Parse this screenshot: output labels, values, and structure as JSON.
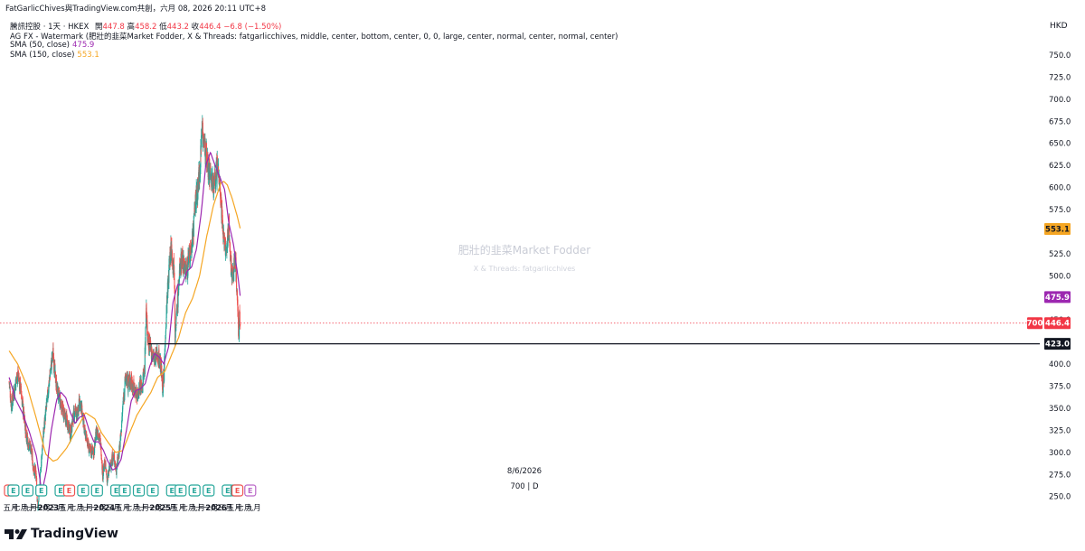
{
  "header": {
    "title_line": "FatGarlicChives與TradingView.com共創，六月 08, 2026 20:11 UTC+8",
    "symbol": "騰訊控股 · 1天 · HKEX",
    "open_label": "開",
    "open": "447.8",
    "high_label": "高",
    "high": "458.2",
    "low_label": "低",
    "low": "443.2",
    "close_label": "收",
    "close": "446.4",
    "change": "−6.8 (−1.50%)",
    "watermark_indicator": "AG FX - Watermark (肥壯的韭菜Market Fodder, X & Threads: fatgarlicchives, middle, center, bottom, center, 0, 0, large, center, normal, center, normal, center)",
    "sma50_label": "SMA (50, close)",
    "sma50_value": "475.9",
    "sma150_label": "SMA (150, close)",
    "sma150_value": "553.1",
    "currency": "HKD"
  },
  "watermark": {
    "title": "肥壯的韭菜Market Fodder",
    "subtitle": "X & Threads: fatgarlicchives"
  },
  "badges": {
    "sma150": "553.1",
    "sma50": "475.9",
    "volume": "700",
    "price": "446.4",
    "support": "423.0"
  },
  "cursor": {
    "date": "8/6/2026",
    "volume_text": "700 | D"
  },
  "footer": {
    "brand": "TradingView"
  },
  "colors": {
    "up": "#26a69a",
    "down": "#ef5350",
    "sma50": "#9c27b0",
    "sma150": "#f5a623",
    "support_line": "#131722",
    "price_line": "#f23645",
    "earnings": "#26a69a",
    "dividend": "#ef5350"
  },
  "chart_data": {
    "type": "candlestick",
    "y_ticks": [
      "750.0",
      "725.0",
      "700.0",
      "675.0",
      "650.0",
      "625.0",
      "600.0",
      "575.0",
      "550.0",
      "525.0",
      "500.0",
      "475.0",
      "450.0",
      "425.0",
      "400.0",
      "375.0",
      "350.0",
      "325.0",
      "300.0",
      "275.0",
      "250.0"
    ],
    "ylim": [
      250,
      750
    ],
    "x_ticks": [
      "五月",
      "七月",
      "九月",
      "十一月",
      "2023",
      "三月",
      "五月",
      "七月",
      "九月",
      "十一月",
      "2024",
      "三月",
      "五月",
      "七月",
      "九月",
      "十一月",
      "2025",
      "三月",
      "五月",
      "七月",
      "九月",
      "十一月",
      "2026",
      "三月",
      "五月",
      "七月",
      "九月"
    ],
    "x_tick_dates": [
      "2022-05-01",
      "2022-07-01",
      "2022-09-01",
      "2022-11-01",
      "2023-01-01",
      "2023-03-01",
      "2023-05-01",
      "2023-07-01",
      "2023-09-01",
      "2023-11-01",
      "2024-01-01",
      "2024-03-01",
      "2024-05-01",
      "2024-07-01",
      "2024-09-01",
      "2024-11-01",
      "2025-01-01",
      "2025-03-01",
      "2025-05-01",
      "2025-07-01",
      "2025-09-01",
      "2025-11-01",
      "2026-01-01",
      "2026-03-01",
      "2026-05-01",
      "2026-07-01",
      "2026-09-01"
    ],
    "price_anchors": [
      [
        "2022-04-20",
        380
      ],
      [
        "2022-05-05",
        352
      ],
      [
        "2022-05-20",
        368
      ],
      [
        "2022-06-15",
        390
      ],
      [
        "2022-07-05",
        372
      ],
      [
        "2022-07-25",
        340
      ],
      [
        "2022-08-10",
        320
      ],
      [
        "2022-08-25",
        310
      ],
      [
        "2022-09-10",
        305
      ],
      [
        "2022-09-25",
        282
      ],
      [
        "2022-10-10",
        278
      ],
      [
        "2022-10-24",
        238
      ],
      [
        "2022-11-05",
        262
      ],
      [
        "2022-11-20",
        300
      ],
      [
        "2022-12-05",
        330
      ],
      [
        "2022-12-20",
        352
      ],
      [
        "2023-01-05",
        378
      ],
      [
        "2023-01-20",
        400
      ],
      [
        "2023-02-01",
        412
      ],
      [
        "2023-02-15",
        385
      ],
      [
        "2023-03-01",
        370
      ],
      [
        "2023-03-15",
        360
      ],
      [
        "2023-04-01",
        350
      ],
      [
        "2023-04-20",
        340
      ],
      [
        "2023-05-10",
        332
      ],
      [
        "2023-05-25",
        320
      ],
      [
        "2023-06-10",
        338
      ],
      [
        "2023-06-25",
        348
      ],
      [
        "2023-07-10",
        340
      ],
      [
        "2023-07-25",
        360
      ],
      [
        "2023-08-10",
        345
      ],
      [
        "2023-08-25",
        322
      ],
      [
        "2023-09-10",
        316
      ],
      [
        "2023-09-25",
        302
      ],
      [
        "2023-10-10",
        302
      ],
      [
        "2023-10-25",
        300
      ],
      [
        "2023-11-10",
        323
      ],
      [
        "2023-11-25",
        322
      ],
      [
        "2023-12-10",
        308
      ],
      [
        "2023-12-22",
        275
      ],
      [
        "2024-01-05",
        288
      ],
      [
        "2024-01-22",
        268
      ],
      [
        "2024-02-05",
        282
      ],
      [
        "2024-02-20",
        292
      ],
      [
        "2024-03-05",
        294
      ],
      [
        "2024-03-20",
        280
      ],
      [
        "2024-04-05",
        300
      ],
      [
        "2024-04-20",
        322
      ],
      [
        "2024-05-05",
        360
      ],
      [
        "2024-05-20",
        385
      ],
      [
        "2024-06-05",
        378
      ],
      [
        "2024-06-20",
        382
      ],
      [
        "2024-07-05",
        376
      ],
      [
        "2024-07-20",
        370
      ],
      [
        "2024-08-05",
        365
      ],
      [
        "2024-08-20",
        378
      ],
      [
        "2024-09-05",
        375
      ],
      [
        "2024-09-20",
        395
      ],
      [
        "2024-10-02",
        465
      ],
      [
        "2024-10-10",
        430
      ],
      [
        "2024-10-25",
        418
      ],
      [
        "2024-11-10",
        412
      ],
      [
        "2024-11-25",
        405
      ],
      [
        "2024-12-10",
        410
      ],
      [
        "2024-12-25",
        406
      ],
      [
        "2025-01-08",
        395
      ],
      [
        "2025-01-15",
        374
      ],
      [
        "2025-01-25",
        385
      ],
      [
        "2025-02-05",
        440
      ],
      [
        "2025-02-15",
        476
      ],
      [
        "2025-02-25",
        500
      ],
      [
        "2025-03-05",
        520
      ],
      [
        "2025-03-12",
        535
      ],
      [
        "2025-03-25",
        515
      ],
      [
        "2025-04-03",
        510
      ],
      [
        "2025-04-08",
        432
      ],
      [
        "2025-04-20",
        460
      ],
      [
        "2025-05-05",
        500
      ],
      [
        "2025-05-20",
        520
      ],
      [
        "2025-06-05",
        515
      ],
      [
        "2025-06-20",
        505
      ],
      [
        "2025-07-05",
        518
      ],
      [
        "2025-07-20",
        525
      ],
      [
        "2025-08-05",
        550
      ],
      [
        "2025-08-20",
        585
      ],
      [
        "2025-09-05",
        600
      ],
      [
        "2025-09-20",
        630
      ],
      [
        "2025-10-02",
        675
      ],
      [
        "2025-10-15",
        640
      ],
      [
        "2025-10-25",
        650
      ],
      [
        "2025-11-10",
        625
      ],
      [
        "2025-11-25",
        615
      ],
      [
        "2025-12-10",
        603
      ],
      [
        "2025-12-25",
        608
      ],
      [
        "2026-01-10",
        625
      ],
      [
        "2026-01-20",
        612
      ],
      [
        "2026-02-01",
        590
      ],
      [
        "2026-02-10",
        562
      ],
      [
        "2026-02-25",
        535
      ],
      [
        "2026-03-10",
        525
      ],
      [
        "2026-03-25",
        560
      ],
      [
        "2026-04-05",
        515
      ],
      [
        "2026-04-20",
        500
      ],
      [
        "2026-05-05",
        520
      ],
      [
        "2026-05-15",
        490
      ],
      [
        "2026-05-22",
        470
      ],
      [
        "2026-05-28",
        430
      ],
      [
        "2026-06-03",
        458
      ],
      [
        "2026-06-08",
        446.4
      ]
    ],
    "sma50_anchors": [
      [
        "2022-04-20",
        385
      ],
      [
        "2022-06-01",
        360
      ],
      [
        "2022-07-15",
        345
      ],
      [
        "2022-09-01",
        322
      ],
      [
        "2022-10-15",
        296
      ],
      [
        "2022-11-20",
        254
      ],
      [
        "2022-12-20",
        280
      ],
      [
        "2023-01-20",
        325
      ],
      [
        "2023-02-25",
        360
      ],
      [
        "2023-03-25",
        368
      ],
      [
        "2023-04-25",
        362
      ],
      [
        "2023-05-25",
        345
      ],
      [
        "2023-06-25",
        333
      ],
      [
        "2023-07-25",
        340
      ],
      [
        "2023-08-25",
        342
      ],
      [
        "2023-09-25",
        325
      ],
      [
        "2023-10-25",
        312
      ],
      [
        "2023-11-25",
        312
      ],
      [
        "2023-12-25",
        303
      ],
      [
        "2024-01-25",
        290
      ],
      [
        "2024-02-25",
        280
      ],
      [
        "2024-03-25",
        283
      ],
      [
        "2024-04-20",
        292
      ],
      [
        "2024-05-25",
        325
      ],
      [
        "2024-06-25",
        358
      ],
      [
        "2024-07-25",
        370
      ],
      [
        "2024-08-25",
        372
      ],
      [
        "2024-09-25",
        378
      ],
      [
        "2024-10-25",
        398
      ],
      [
        "2024-11-25",
        412
      ],
      [
        "2024-12-25",
        408
      ],
      [
        "2025-01-25",
        400
      ],
      [
        "2025-02-25",
        420
      ],
      [
        "2025-03-25",
        470
      ],
      [
        "2025-04-25",
        490
      ],
      [
        "2025-05-25",
        490
      ],
      [
        "2025-06-25",
        505
      ],
      [
        "2025-07-25",
        510
      ],
      [
        "2025-08-25",
        530
      ],
      [
        "2025-09-25",
        570
      ],
      [
        "2025-10-25",
        625
      ],
      [
        "2025-11-25",
        640
      ],
      [
        "2025-12-25",
        625
      ],
      [
        "2026-01-25",
        612
      ],
      [
        "2026-02-25",
        598
      ],
      [
        "2026-03-25",
        560
      ],
      [
        "2026-04-25",
        535
      ],
      [
        "2026-05-25",
        497
      ],
      [
        "2026-06-08",
        475.9
      ]
    ],
    "sma150_anchors": [
      [
        "2022-04-20",
        415
      ],
      [
        "2022-06-15",
        400
      ],
      [
        "2022-08-15",
        375
      ],
      [
        "2022-10-15",
        338
      ],
      [
        "2022-12-15",
        298
      ],
      [
        "2023-02-01",
        290
      ],
      [
        "2023-03-01",
        292
      ],
      [
        "2023-05-01",
        305
      ],
      [
        "2023-07-01",
        325
      ],
      [
        "2023-09-01",
        345
      ],
      [
        "2023-11-01",
        338
      ],
      [
        "2023-12-15",
        322
      ],
      [
        "2024-02-01",
        310
      ],
      [
        "2024-03-15",
        300
      ],
      [
        "2024-05-01",
        302
      ],
      [
        "2024-06-15",
        322
      ],
      [
        "2024-08-01",
        342
      ],
      [
        "2024-09-15",
        355
      ],
      [
        "2024-11-01",
        368
      ],
      [
        "2024-12-15",
        385
      ],
      [
        "2025-02-01",
        392
      ],
      [
        "2025-03-15",
        410
      ],
      [
        "2025-05-01",
        430
      ],
      [
        "2025-06-15",
        458
      ],
      [
        "2025-08-01",
        475
      ],
      [
        "2025-09-15",
        500
      ],
      [
        "2025-11-01",
        545
      ],
      [
        "2025-12-15",
        580
      ],
      [
        "2026-02-01",
        605
      ],
      [
        "2026-02-20",
        607
      ],
      [
        "2026-03-15",
        603
      ],
      [
        "2026-04-15",
        588
      ],
      [
        "2026-05-15",
        570
      ],
      [
        "2026-06-08",
        553.1
      ]
    ],
    "support_level": 423.0,
    "support_start": "2024-10-15",
    "last_price": 446.4,
    "event_markers": [
      {
        "date": "2022-04-25",
        "type": "dividend",
        "text": "E"
      },
      {
        "date": "2022-05-18",
        "type": "earnings",
        "text": "E"
      },
      {
        "date": "2022-08-18",
        "type": "earnings",
        "text": "E"
      },
      {
        "date": "2022-11-16",
        "type": "earnings",
        "text": "E"
      },
      {
        "date": "2023-03-22",
        "type": "earnings",
        "text": "E"
      },
      {
        "date": "2023-05-17",
        "type": "dividend",
        "text": "E"
      },
      {
        "date": "2023-08-16",
        "type": "earnings",
        "text": "E"
      },
      {
        "date": "2023-11-15",
        "type": "earnings",
        "text": "E"
      },
      {
        "date": "2024-03-20",
        "type": "earnings",
        "text": "E"
      },
      {
        "date": "2024-05-14",
        "type": "earnings",
        "text": "E"
      },
      {
        "date": "2024-08-14",
        "type": "earnings",
        "text": "E"
      },
      {
        "date": "2024-11-13",
        "type": "earnings",
        "text": "E"
      },
      {
        "date": "2025-03-19",
        "type": "earnings",
        "text": "E"
      },
      {
        "date": "2025-05-14",
        "type": "earnings",
        "text": "E"
      },
      {
        "date": "2025-08-13",
        "type": "earnings",
        "text": "E"
      },
      {
        "date": "2025-11-13",
        "type": "earnings",
        "text": "E"
      },
      {
        "date": "2026-03-18",
        "type": "earnings",
        "text": "E"
      },
      {
        "date": "2026-05-13",
        "type": "earnings",
        "text": "E"
      },
      {
        "date": "2026-05-20",
        "type": "dividend",
        "text": "E"
      },
      {
        "date": "2026-08-12",
        "type": "future",
        "text": "E"
      }
    ]
  }
}
